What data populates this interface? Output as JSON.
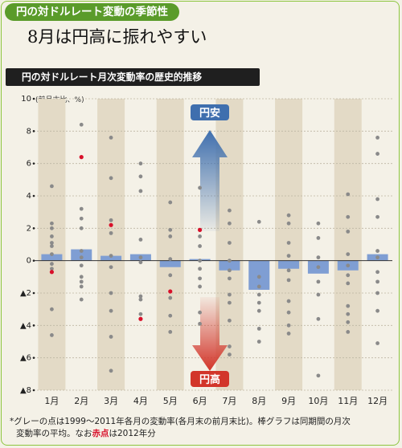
{
  "header": {
    "tag": "円の対ドルレート変動の季節性",
    "headline": "8月は円高に振れやすい",
    "subtitle": "円の対ドルレート月次変動率の歴史的推移",
    "unit_label": "(前月末比、%)"
  },
  "arrows": {
    "up_label": "円安",
    "down_label": "円高"
  },
  "footnote": {
    "part1": "*グレーの点は1999～2011年各月の変動率(各月末の前月末比)。棒グラフは同期間の月次",
    "part2": "変動率の平均。なお",
    "red_word": "赤点",
    "part3": "は2012年分"
  },
  "colors": {
    "bar": "#7f9ed3",
    "gray_dot": "#8a8a8a",
    "red_dot": "#d8102a",
    "up_arrow": "#3f6fae",
    "down_arrow": "#d2352a",
    "stripe": "#e3dac6"
  },
  "chart_data": {
    "type": "bar",
    "categories": [
      "1月",
      "2月",
      "3月",
      "4月",
      "5月",
      "6月",
      "7月",
      "8月",
      "9月",
      "10月",
      "11月",
      "12月"
    ],
    "ylim": [
      -8,
      10
    ],
    "ytick_labels": [
      {
        "value": 10,
        "label": "10"
      },
      {
        "value": 8,
        "label": "8"
      },
      {
        "value": 6,
        "label": "6"
      },
      {
        "value": 4,
        "label": "4"
      },
      {
        "value": 2,
        "label": "2"
      },
      {
        "value": 0,
        "label": "0"
      },
      {
        "value": -2,
        "label": "▲2"
      },
      {
        "value": -4,
        "label": "▲4"
      },
      {
        "value": -6,
        "label": "▲6"
      },
      {
        "value": -8,
        "label": "▲8"
      }
    ],
    "series": [
      {
        "values": [
          0.4,
          0.7,
          0.3,
          0.4,
          -0.4,
          0.1,
          -0.6,
          -1.8,
          -0.5,
          -0.8,
          -0.6,
          0.4
        ]
      }
    ],
    "gray_points": [
      [
        4.6,
        2.3,
        2.0,
        1.5,
        1.1,
        0.9,
        0.4,
        -0.2,
        -0.5,
        -3.0,
        -4.6
      ],
      [
        8.4,
        3.2,
        2.6,
        2.0,
        0.6,
        0.2,
        -0.3,
        -1.0,
        -1.3,
        -1.6,
        -2.4
      ],
      [
        7.6,
        5.1,
        2.5,
        1.7,
        0.3,
        -0.4,
        -2.0,
        -3.1,
        -4.7,
        -6.8
      ],
      [
        6.0,
        5.2,
        4.3,
        1.3,
        0.2,
        -0.1,
        -2.2,
        -2.4,
        -3.3
      ],
      [
        3.6,
        1.9,
        1.5,
        0.1,
        -0.9,
        -2.3,
        -3.4,
        -4.4
      ],
      [
        4.5,
        1.5,
        0.9,
        0.0,
        -0.5,
        -1.1,
        -1.6,
        -3.2,
        -3.9
      ],
      [
        3.1,
        2.3,
        1.1,
        0.0,
        -0.6,
        -1.1,
        -2.1,
        -2.6,
        -3.7,
        -5.3,
        -5.8
      ],
      [
        2.4,
        -1.0,
        -1.6,
        -2.1,
        -2.6,
        -3.1,
        -4.2,
        -5.0
      ],
      [
        2.8,
        2.3,
        1.1,
        0.3,
        -0.6,
        -1.2,
        -2.5,
        -3.2,
        -4.0,
        -4.5
      ],
      [
        2.3,
        1.4,
        0.2,
        -0.4,
        -1.3,
        -2.1,
        -3.6,
        -7.1
      ],
      [
        4.1,
        2.7,
        1.8,
        0.4,
        -0.3,
        -0.9,
        -1.4,
        -2.8,
        -3.3,
        -3.8,
        -4.4
      ],
      [
        7.6,
        6.6,
        3.8,
        2.7,
        0.6,
        0.2,
        -0.7,
        -1.3,
        -2.0,
        -3.1,
        -5.1
      ]
    ],
    "red_points": [
      -0.7,
      6.4,
      2.2,
      -3.6,
      -1.9,
      1.9,
      null,
      null,
      null,
      null,
      null,
      null
    ]
  }
}
